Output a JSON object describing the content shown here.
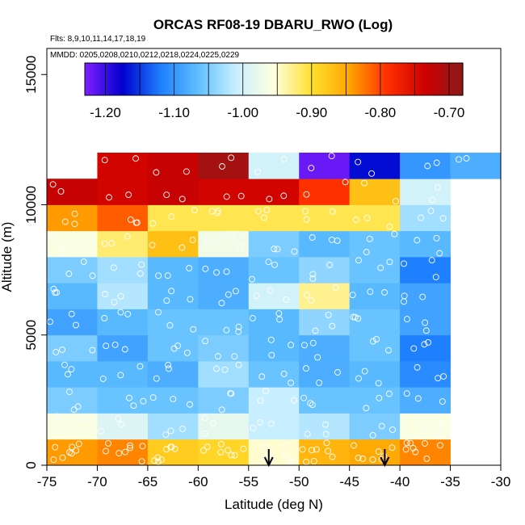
{
  "chart_data": {
    "type": "heatmap",
    "title": "ORCAS RF08-19 DBARU_RWO (Log)",
    "flights_note": "Flts: 8,9,10,11,14,17,18,19",
    "dates_note": "MMDD: 0205,0208,0210,0212,0218,0224,0225,0229",
    "xlabel": "Latitude (deg N)",
    "ylabel": "Altitude (m)",
    "xlim": [
      -75,
      -30
    ],
    "ylim": [
      0,
      16000
    ],
    "x_ticks": [
      -75,
      -70,
      -65,
      -60,
      -55,
      -50,
      -45,
      -40,
      -35,
      -30
    ],
    "x_tick_labels": [
      "-75",
      "-70",
      "-65",
      "-60",
      "-55",
      "-50",
      "-45",
      "-40",
      "-35",
      "-30"
    ],
    "y_ticks": [
      0,
      5000,
      10000,
      15000
    ],
    "y_tick_labels": [
      "0",
      "5000",
      "10000",
      "15000"
    ],
    "colorbar": {
      "min": -1.23,
      "max": -0.68,
      "ticks": [
        -1.2,
        -1.1,
        -1.0,
        -0.9,
        -0.8,
        -0.7
      ],
      "tick_labels": [
        "-1.20",
        "-1.10",
        "-1.00",
        "-0.90",
        "-0.80",
        "-0.70"
      ],
      "colors": [
        "#7f1fff",
        "#0000cd",
        "#1e7fff",
        "#5fbfff",
        "#c8efff",
        "#ffffe0",
        "#ffe030",
        "#ffa500",
        "#ff3000",
        "#cd0000",
        "#8b1a1a"
      ]
    },
    "lat_bins": [
      -75,
      -70,
      -65,
      -60,
      -55,
      -50,
      -45,
      -40,
      -35,
      -30
    ],
    "alt_bins": [
      0,
      1000,
      2000,
      3000,
      4000,
      5000,
      6000,
      7000,
      8000,
      9000,
      10000,
      11000,
      12000
    ],
    "grid": [
      [
        -0.84,
        -0.83,
        -0.88,
        -0.89,
        -0.95,
        -0.86,
        -0.85,
        -0.83,
        null
      ],
      [
        -0.96,
        -0.99,
        -1.03,
        -0.98,
        -1.01,
        -1.02,
        -1.05,
        -0.96,
        null
      ],
      [
        -1.05,
        -1.06,
        -1.06,
        -1.05,
        -1.01,
        -1.06,
        -1.06,
        -1.08,
        null
      ],
      [
        -1.07,
        -1.07,
        -1.08,
        -1.03,
        -1.06,
        -1.08,
        -1.07,
        -1.11,
        null
      ],
      [
        -1.05,
        -1.09,
        -1.06,
        -1.05,
        -1.07,
        -1.08,
        -1.06,
        -1.12,
        null
      ],
      [
        -1.09,
        -1.07,
        -1.06,
        -1.06,
        -1.07,
        -1.04,
        -1.06,
        -1.09,
        null
      ],
      [
        -1.07,
        -1.02,
        -1.07,
        -1.08,
        -1.0,
        -0.93,
        -1.07,
        -1.09,
        null
      ],
      [
        -1.05,
        -1.03,
        -1.07,
        -1.08,
        -1.06,
        -1.04,
        -1.06,
        -1.12,
        null
      ],
      [
        -0.96,
        -0.92,
        -0.87,
        -0.97,
        -1.05,
        -1.07,
        -1.06,
        -1.07,
        null
      ],
      [
        -0.84,
        -0.81,
        -0.91,
        -0.91,
        -0.91,
        -0.91,
        -0.91,
        -1.03,
        null
      ],
      [
        -0.73,
        -0.74,
        -0.73,
        -0.74,
        -0.74,
        -0.79,
        -0.87,
        -1.0,
        null
      ],
      [
        null,
        -0.74,
        -0.73,
        -0.7,
        -1.0,
        -1.22,
        -1.17,
        -1.1,
        -1.08
      ]
    ],
    "arrows_lat": [
      -53,
      -41.5
    ]
  }
}
